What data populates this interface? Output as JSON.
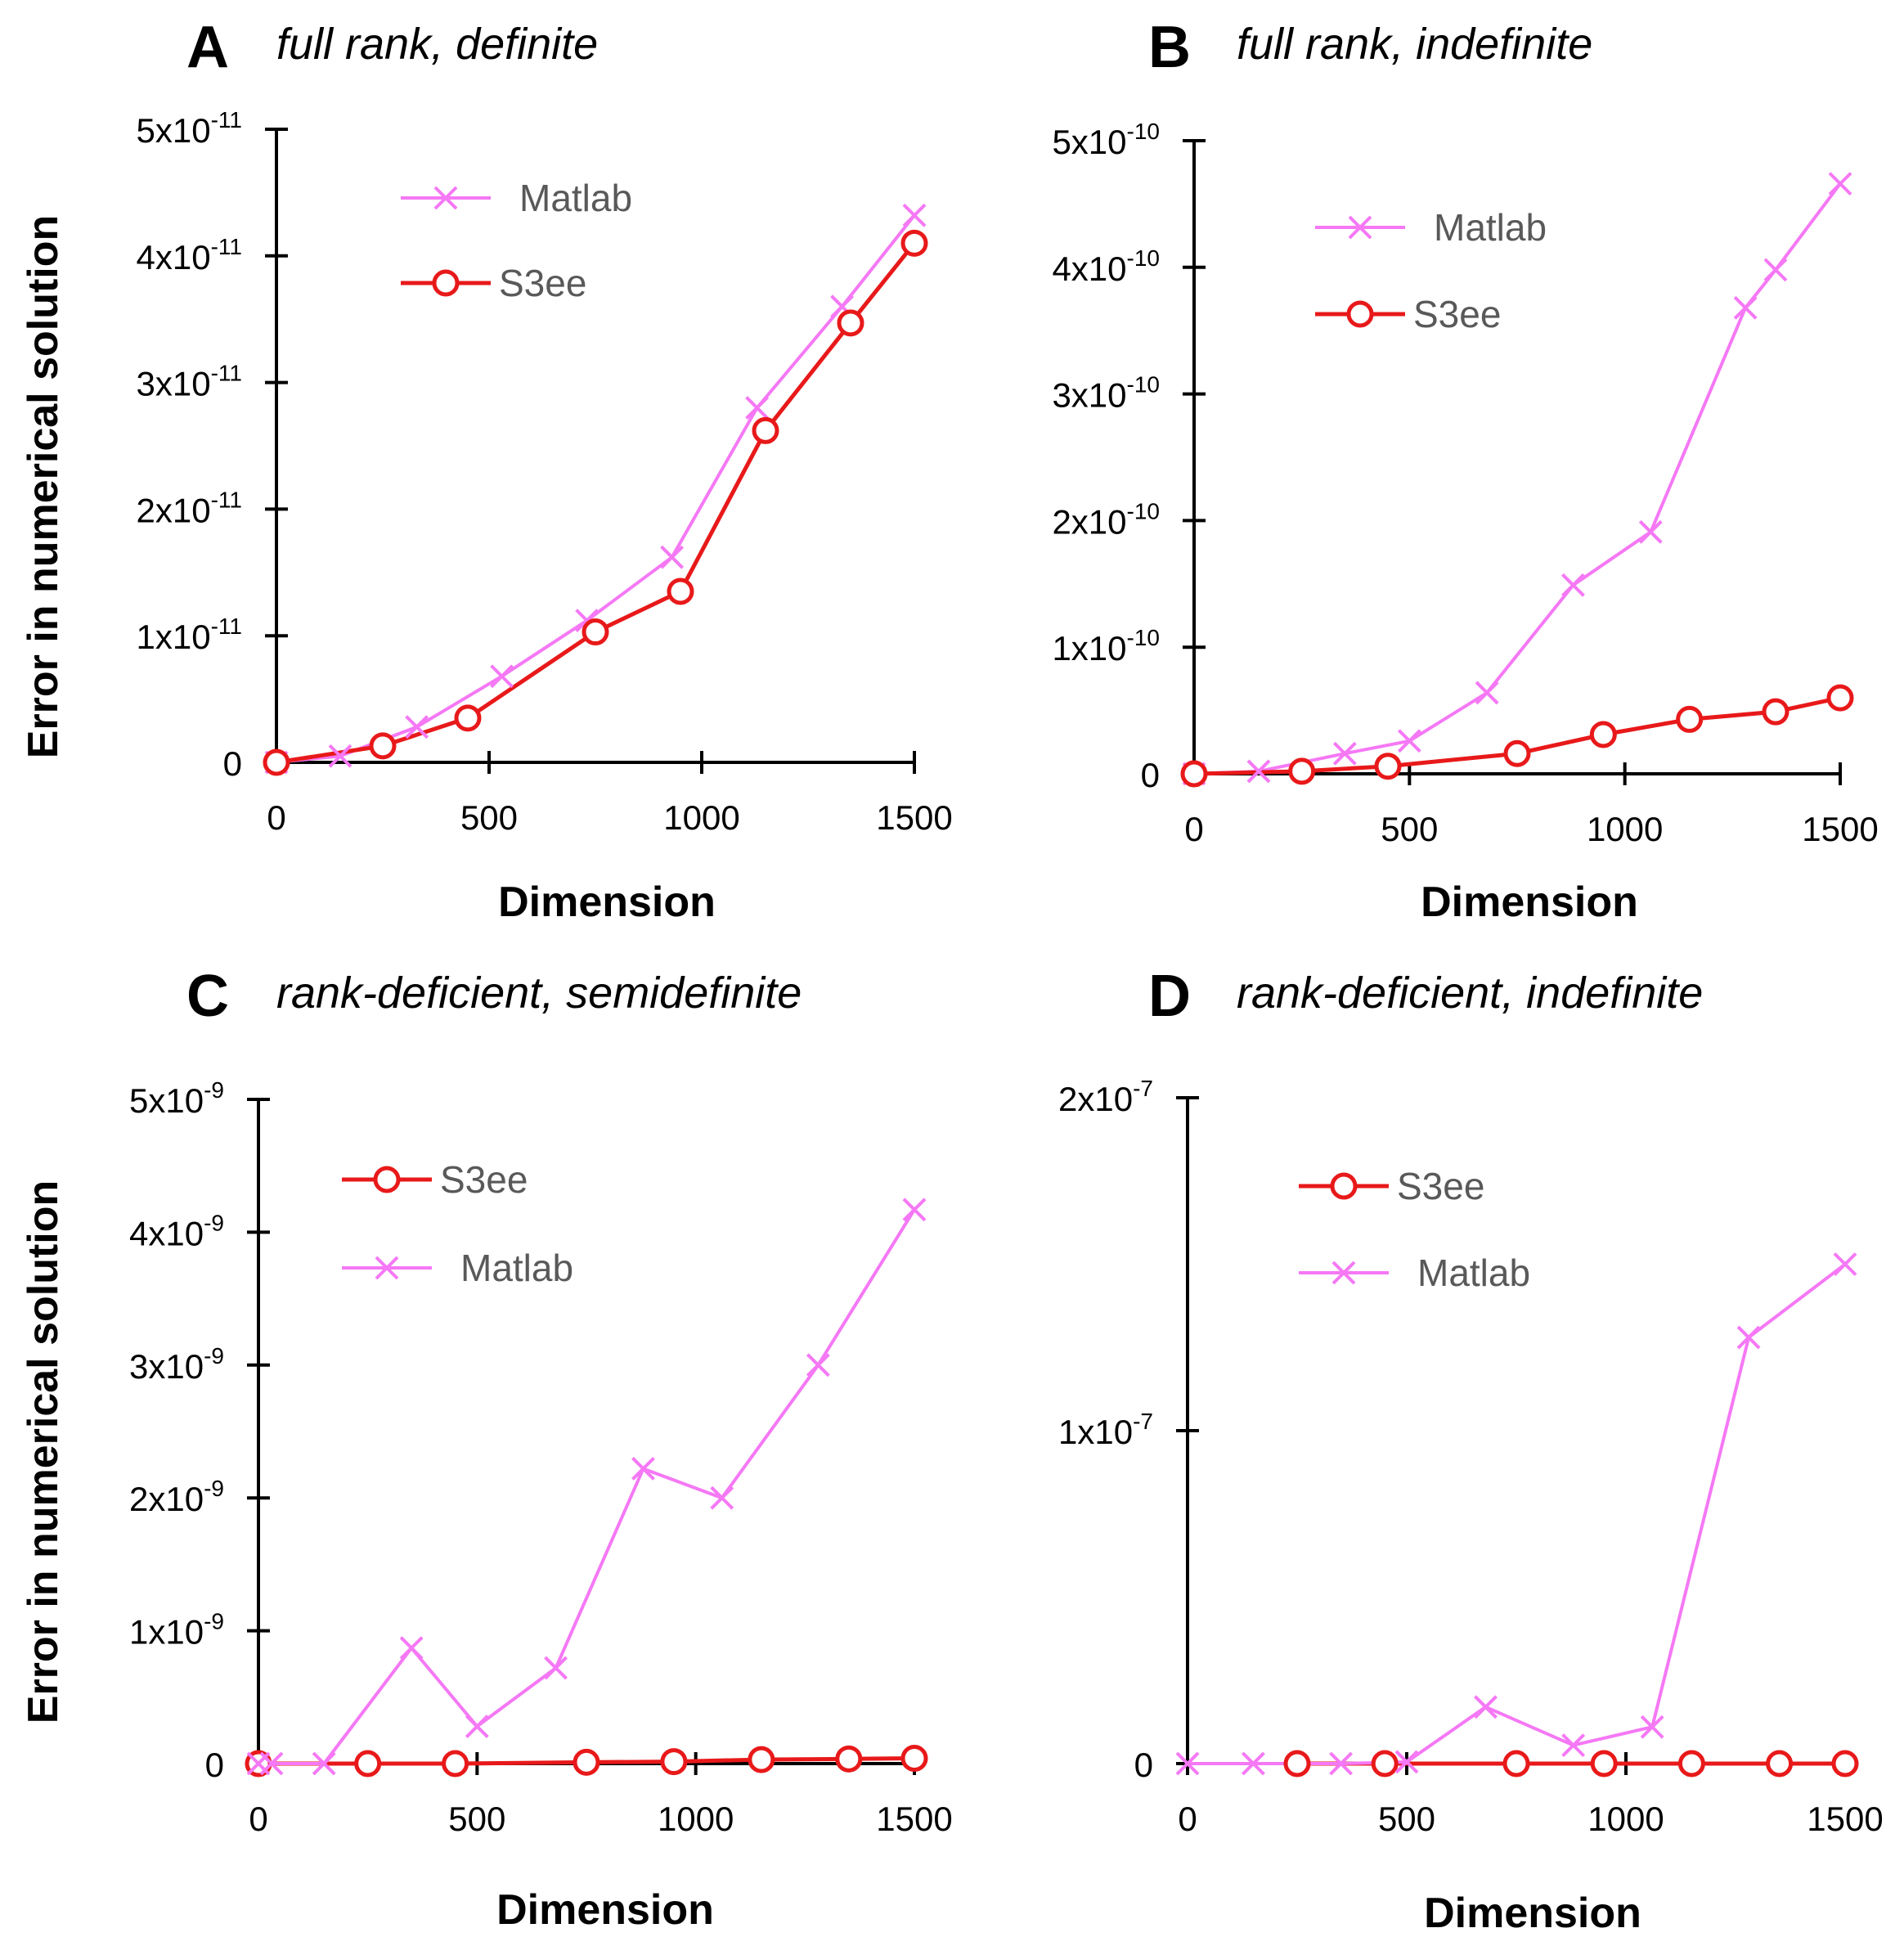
{
  "figure": {
    "ylabel_shared": "Error in numerical solution",
    "xlabel_shared": "Dimension"
  },
  "colors": {
    "matlab": "#F578F5",
    "s3ee": "#E8191A",
    "axis": "#000000",
    "legend_text": "#595959"
  },
  "chart_data": [
    {
      "id": "A",
      "type": "line",
      "panel_letter": "A",
      "title": "full rank, definite",
      "xlabel": "Dimension",
      "ylabel": "Error in numerical solution",
      "xlim": [
        0,
        1500
      ],
      "ylim": [
        0,
        5e-11
      ],
      "xticks": [
        0,
        500,
        1000,
        1500
      ],
      "yticks": [
        {
          "value": 0,
          "mant": "0",
          "exp": ""
        },
        {
          "value": 1e-11,
          "mant": "1x10",
          "exp": "-11"
        },
        {
          "value": 2e-11,
          "mant": "2x10",
          "exp": "-11"
        },
        {
          "value": 3e-11,
          "mant": "3x10",
          "exp": "-11"
        },
        {
          "value": 4e-11,
          "mant": "4x10",
          "exp": "-11"
        },
        {
          "value": 5e-11,
          "mant": "5x10",
          "exp": "-11"
        }
      ],
      "legend": {
        "order": [
          "Matlab",
          "S3ee"
        ],
        "placement": "top-center"
      },
      "series": [
        {
          "name": "Matlab",
          "marker": "x",
          "x": [
            0,
            150,
            330,
            530,
            730,
            930,
            1130,
            1330,
            1500
          ],
          "y": [
            0,
            5e-13,
            2.8e-12,
            6.8e-12,
            1.12e-11,
            1.62e-11,
            2.8e-11,
            3.6e-11,
            4.32e-11
          ]
        },
        {
          "name": "S3ee",
          "marker": "o",
          "x": [
            0,
            250,
            450,
            750,
            950,
            1150,
            1350,
            1500
          ],
          "y": [
            0,
            1.3e-12,
            3.5e-12,
            1.03e-11,
            1.35e-11,
            2.62e-11,
            3.47e-11,
            4.1e-11
          ]
        }
      ]
    },
    {
      "id": "B",
      "type": "line",
      "panel_letter": "B",
      "title": "full rank, indefinite",
      "xlabel": "Dimension",
      "ylabel": "",
      "xlim": [
        0,
        1500
      ],
      "ylim": [
        0,
        5e-10
      ],
      "xticks": [
        0,
        500,
        1000,
        1500
      ],
      "yticks": [
        {
          "value": 0,
          "mant": "0",
          "exp": ""
        },
        {
          "value": 1e-10,
          "mant": "1x10",
          "exp": "-10"
        },
        {
          "value": 2e-10,
          "mant": "2x10",
          "exp": "-10"
        },
        {
          "value": 3e-10,
          "mant": "3x10",
          "exp": "-10"
        },
        {
          "value": 4e-10,
          "mant": "4x10",
          "exp": "-10"
        },
        {
          "value": 5e-10,
          "mant": "5x10",
          "exp": "-10"
        }
      ],
      "legend": {
        "order": [
          "Matlab",
          "S3ee"
        ],
        "placement": "top-left"
      },
      "series": [
        {
          "name": "Matlab",
          "marker": "x",
          "x": [
            0,
            150,
            350,
            500,
            680,
            880,
            1060,
            1280,
            1350,
            1500
          ],
          "y": [
            0,
            2e-12,
            1.6e-11,
            2.6e-11,
            6.4e-11,
            1.49e-10,
            1.91e-10,
            3.68e-10,
            3.98e-10,
            4.66e-10
          ]
        },
        {
          "name": "S3ee",
          "marker": "o",
          "x": [
            0,
            250,
            450,
            750,
            950,
            1150,
            1350,
            1500
          ],
          "y": [
            0,
            2e-12,
            6e-12,
            1.6e-11,
            3.1e-11,
            4.3e-11,
            4.9e-11,
            6e-11
          ]
        }
      ]
    },
    {
      "id": "C",
      "type": "line",
      "panel_letter": "C",
      "title": "rank-deficient, semidefinite",
      "xlabel": "Dimension",
      "ylabel": "Error in numerical solution",
      "xlim": [
        0,
        1500
      ],
      "ylim": [
        0,
        5e-09
      ],
      "xticks": [
        0,
        500,
        1000,
        1500
      ],
      "yticks": [
        {
          "value": 0,
          "mant": "0",
          "exp": ""
        },
        {
          "value": 1e-09,
          "mant": "1x10",
          "exp": "-9"
        },
        {
          "value": 2e-09,
          "mant": "2x10",
          "exp": "-9"
        },
        {
          "value": 3e-09,
          "mant": "3x10",
          "exp": "-9"
        },
        {
          "value": 4e-09,
          "mant": "4x10",
          "exp": "-9"
        },
        {
          "value": 5e-09,
          "mant": "5x10",
          "exp": "-9"
        }
      ],
      "legend": {
        "order": [
          "S3ee",
          "Matlab"
        ],
        "placement": "top-left"
      },
      "series": [
        {
          "name": "S3ee",
          "marker": "o",
          "x": [
            0,
            250,
            450,
            750,
            950,
            1150,
            1350,
            1500
          ],
          "y": [
            0,
            0,
            0,
            1e-11,
            1.5e-11,
            3e-11,
            3.5e-11,
            4e-11
          ]
        },
        {
          "name": "Matlab",
          "marker": "x",
          "x": [
            0,
            30,
            150,
            350,
            500,
            680,
            880,
            1060,
            1280,
            1500
          ],
          "y": [
            0,
            0,
            0,
            8.7e-10,
            2.8e-10,
            7.2e-10,
            2.22e-09,
            2e-09,
            3e-09,
            4.17e-09
          ]
        }
      ]
    },
    {
      "id": "D",
      "type": "line",
      "panel_letter": "D",
      "title": "rank-deficient, indefinite",
      "xlabel": "Dimension",
      "ylabel": "",
      "xlim": [
        0,
        1500
      ],
      "ylim": [
        0,
        2e-07
      ],
      "xticks": [
        0,
        500,
        1000,
        1500
      ],
      "yticks": [
        {
          "value": 0,
          "mant": "0",
          "exp": ""
        },
        {
          "value": 1e-07,
          "mant": "1x10",
          "exp": "-7"
        },
        {
          "value": 2e-07,
          "mant": "2x10",
          "exp": "-7"
        }
      ],
      "legend": {
        "order": [
          "S3ee",
          "Matlab"
        ],
        "placement": "top-left"
      },
      "series": [
        {
          "name": "S3ee",
          "marker": "o",
          "x": [
            250,
            450,
            750,
            950,
            1150,
            1350,
            1500
          ],
          "y": [
            0,
            0,
            0,
            0,
            0,
            0,
            0
          ]
        },
        {
          "name": "Matlab",
          "marker": "x",
          "x": [
            0,
            150,
            350,
            500,
            680,
            880,
            1060,
            1280,
            1500
          ],
          "y": [
            0,
            0,
            0,
            5e-10,
            1.7e-08,
            5.5e-09,
            1.1e-08,
            1.28e-07,
            1.5e-07
          ]
        }
      ]
    }
  ]
}
